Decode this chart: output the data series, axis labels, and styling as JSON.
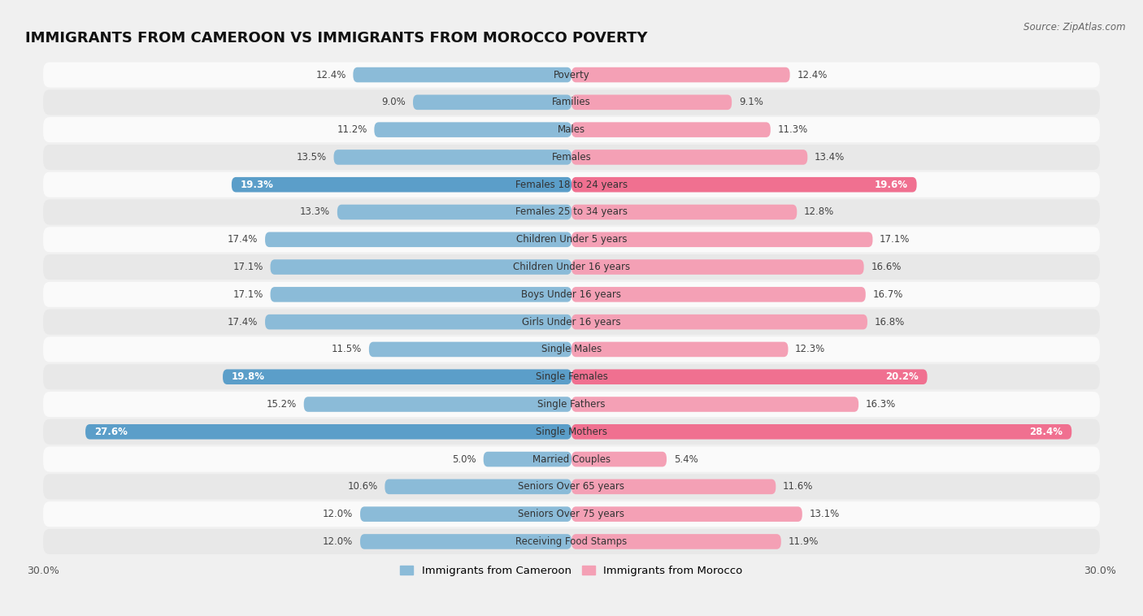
{
  "title": "IMMIGRANTS FROM CAMEROON VS IMMIGRANTS FROM MOROCCO POVERTY",
  "source": "Source: ZipAtlas.com",
  "categories": [
    "Poverty",
    "Families",
    "Males",
    "Females",
    "Females 18 to 24 years",
    "Females 25 to 34 years",
    "Children Under 5 years",
    "Children Under 16 years",
    "Boys Under 16 years",
    "Girls Under 16 years",
    "Single Males",
    "Single Females",
    "Single Fathers",
    "Single Mothers",
    "Married Couples",
    "Seniors Over 65 years",
    "Seniors Over 75 years",
    "Receiving Food Stamps"
  ],
  "cameroon_values": [
    12.4,
    9.0,
    11.2,
    13.5,
    19.3,
    13.3,
    17.4,
    17.1,
    17.1,
    17.4,
    11.5,
    19.8,
    15.2,
    27.6,
    5.0,
    10.6,
    12.0,
    12.0
  ],
  "morocco_values": [
    12.4,
    9.1,
    11.3,
    13.4,
    19.6,
    12.8,
    17.1,
    16.6,
    16.7,
    16.8,
    12.3,
    20.2,
    16.3,
    28.4,
    5.4,
    11.6,
    13.1,
    11.9
  ],
  "cameroon_color": "#8bbbd8",
  "morocco_color": "#f4a0b5",
  "cameroon_highlight_color": "#5b9ec9",
  "morocco_highlight_color": "#f07090",
  "highlight_rows": [
    4,
    11,
    13
  ],
  "xlim": 30.0,
  "bar_height": 0.55,
  "background_color": "#f0f0f0",
  "row_color_light": "#fafafa",
  "row_color_dark": "#e8e8e8",
  "legend_label_cameroon": "Immigrants from Cameroon",
  "legend_label_morocco": "Immigrants from Morocco",
  "title_fontsize": 13,
  "label_fontsize": 8.5,
  "value_fontsize": 8.5,
  "axis_fontsize": 9
}
